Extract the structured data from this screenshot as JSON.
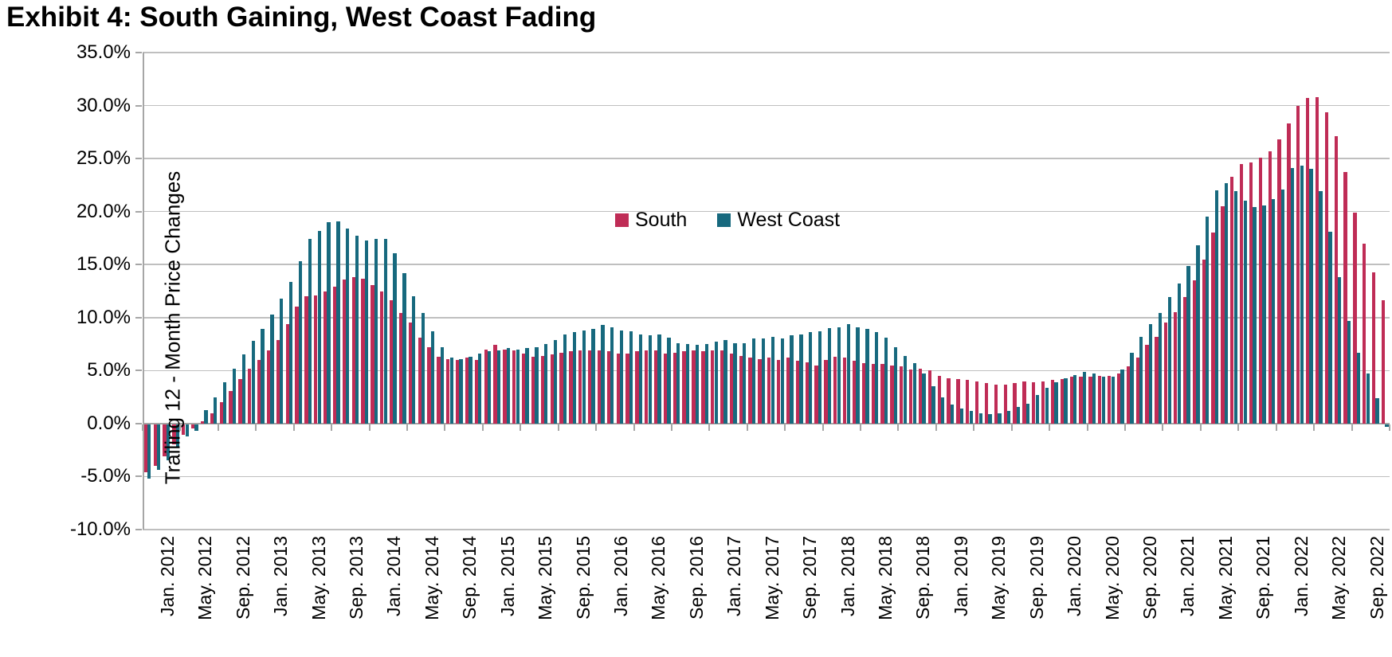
{
  "title": "Exhibit 4: South Gaining, West Coast Fading",
  "chart_data": {
    "type": "bar",
    "title": "Exhibit 4: South Gaining, West Coast Fading",
    "ylabel": "Trailing 12 - Month Price Changes",
    "xlabel": "",
    "ylim": [
      -10,
      35
    ],
    "ytick_step": 5,
    "ytick_format": "one-decimal-percent",
    "grid": true,
    "legend_position": "top-center-inside",
    "x_unit": "month",
    "x_start": "Jan. 2012",
    "x_end": "Dec. 2022",
    "x_tick_every": 4,
    "x_tick_labels": [
      "Jan. 2012",
      "May. 2012",
      "Sep. 2012",
      "Jan. 2013",
      "May. 2013",
      "Sep. 2013",
      "Jan. 2014",
      "May. 2014",
      "Sep. 2014",
      "Jan. 2015",
      "May. 2015",
      "Sep. 2015",
      "Jan. 2016",
      "May. 2016",
      "Sep. 2016",
      "Jan. 2017",
      "May. 2017",
      "Sep. 2017",
      "Jan. 2018",
      "May. 2018",
      "Sep. 2018",
      "Jan. 2019",
      "May. 2019",
      "Sep. 2019",
      "Jan. 2020",
      "May. 2020",
      "Sep. 2020",
      "Jan. 2021",
      "May. 2021",
      "Sep. 2021",
      "Jan. 2022",
      "May. 2022",
      "Sep. 2022"
    ],
    "series": [
      {
        "name": "South",
        "color": "#BF2C56",
        "values": [
          -4.5,
          -3.9,
          -3.0,
          -1.9,
          -1.0,
          -0.4,
          0.2,
          1.0,
          2.0,
          3.1,
          4.2,
          5.2,
          6.0,
          6.9,
          7.9,
          9.4,
          11.0,
          12.0,
          12.1,
          12.5,
          12.9,
          13.6,
          13.8,
          13.7,
          13.1,
          12.5,
          11.6,
          10.4,
          9.5,
          8.1,
          7.2,
          6.3,
          6.1,
          6.0,
          6.2,
          6.0,
          7.0,
          7.4,
          7.0,
          6.9,
          6.6,
          6.3,
          6.4,
          6.5,
          6.7,
          6.8,
          6.9,
          6.9,
          6.9,
          6.8,
          6.6,
          6.6,
          6.8,
          6.9,
          6.9,
          6.6,
          6.7,
          6.8,
          6.9,
          6.8,
          6.9,
          6.9,
          6.6,
          6.4,
          6.2,
          6.1,
          6.2,
          6.0,
          6.2,
          5.9,
          5.8,
          5.5,
          6.0,
          6.3,
          6.2,
          5.9,
          5.7,
          5.6,
          5.6,
          5.5,
          5.4,
          5.1,
          5.2,
          5.0,
          4.5,
          4.3,
          4.2,
          4.1,
          4.0,
          3.8,
          3.7,
          3.7,
          3.8,
          4.0,
          3.9,
          4.0,
          4.1,
          4.2,
          4.4,
          4.4,
          4.4,
          4.5,
          4.5,
          4.7,
          5.4,
          6.2,
          7.4,
          8.2,
          9.5,
          10.5,
          11.9,
          13.5,
          15.5,
          18.0,
          20.5,
          23.3,
          24.5,
          24.6,
          25.1,
          25.7,
          26.8,
          28.3,
          30.0,
          30.7,
          30.8,
          29.4,
          27.1,
          23.7,
          19.9,
          17.0,
          14.3,
          11.6
        ]
      },
      {
        "name": "West Coast",
        "color": "#17697E",
        "values": [
          -5.1,
          -4.3,
          -3.4,
          -2.1,
          -1.1,
          -0.6,
          1.3,
          2.5,
          3.9,
          5.2,
          6.5,
          7.8,
          8.9,
          10.3,
          11.8,
          13.4,
          15.3,
          17.4,
          18.2,
          19.0,
          19.1,
          18.4,
          17.7,
          17.3,
          17.4,
          17.4,
          16.1,
          14.2,
          12.0,
          10.4,
          8.7,
          7.2,
          6.2,
          6.1,
          6.3,
          6.6,
          6.8,
          6.9,
          7.1,
          7.0,
          7.1,
          7.2,
          7.5,
          7.9,
          8.4,
          8.6,
          8.8,
          8.9,
          9.3,
          9.1,
          8.8,
          8.7,
          8.4,
          8.3,
          8.4,
          8.1,
          7.6,
          7.5,
          7.4,
          7.5,
          7.7,
          7.9,
          7.6,
          7.6,
          8.0,
          8.0,
          8.2,
          8.0,
          8.3,
          8.4,
          8.6,
          8.7,
          9.0,
          9.1,
          9.4,
          9.1,
          8.9,
          8.6,
          8.1,
          7.2,
          6.4,
          5.7,
          4.7,
          3.5,
          2.5,
          1.8,
          1.4,
          1.2,
          1.0,
          0.9,
          1.0,
          1.2,
          1.6,
          1.9,
          2.7,
          3.4,
          3.9,
          4.3,
          4.6,
          4.9,
          4.7,
          4.4,
          4.4,
          5.1,
          6.7,
          8.2,
          9.4,
          10.4,
          11.9,
          13.2,
          14.9,
          16.8,
          19.5,
          22.0,
          22.7,
          21.9,
          21.0,
          20.4,
          20.6,
          21.2,
          22.1,
          24.1,
          24.3,
          24.0,
          21.9,
          18.1,
          13.8,
          9.7,
          6.7,
          4.7,
          2.4,
          -0.2
        ]
      }
    ]
  }
}
